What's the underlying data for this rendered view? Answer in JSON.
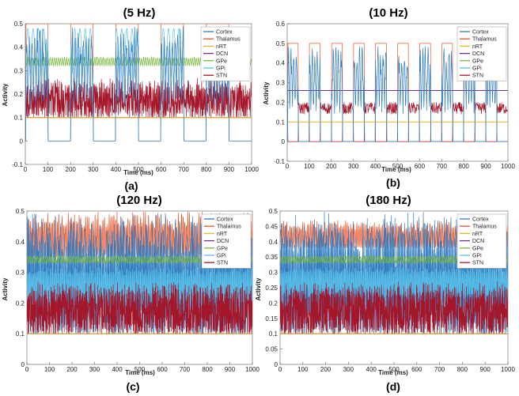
{
  "chart_data": [
    {
      "type": "line",
      "title": "(5 Hz)",
      "caption": "(a)",
      "xlabel": "Time (ms)",
      "ylabel": "Activity",
      "xlim": [
        0,
        1000
      ],
      "ylim": [
        -0.1,
        0.5
      ],
      "xticks": [
        "0",
        "100",
        "200",
        "300",
        "400",
        "500",
        "600",
        "700",
        "800",
        "900",
        "1000"
      ],
      "yticks": [
        "-0.1",
        "0",
        "0.1",
        "0.2",
        "0.3",
        "0.4",
        "0.5"
      ],
      "stim_frequency_hz": 5,
      "legend": [
        "Cortex",
        "Thalamus",
        "nRT",
        "DCN",
        "GPe",
        "GPi",
        "STN"
      ],
      "series": [
        {
          "name": "Cortex",
          "color": "#2f7bbf",
          "pattern": "bursts within thalamus pulses",
          "range": [
            0.0,
            0.49
          ]
        },
        {
          "name": "Thalamus",
          "color": "#e8552b",
          "pattern": "square pulses",
          "levels": [
            0,
            0.5
          ]
        },
        {
          "name": "nRT",
          "color": "#e6b728",
          "pattern": "constant",
          "value": 0.1
        },
        {
          "name": "DCN",
          "color": "#7b2d8e",
          "pattern": "constant",
          "value": 0.1
        },
        {
          "name": "GPe",
          "color": "#79b83a",
          "pattern": "noisy oscillation",
          "range": [
            0.32,
            0.36
          ]
        },
        {
          "name": "GPi",
          "color": "#5ac1ea",
          "pattern": "square pulses with oscillation",
          "range": [
            0.0,
            0.48
          ]
        },
        {
          "name": "STN",
          "color": "#a4162a",
          "pattern": "dense oscillation",
          "range": [
            0.1,
            0.27
          ]
        }
      ]
    },
    {
      "type": "line",
      "title": "(10 Hz)",
      "caption": "(b)",
      "xlabel": "Time (ms)",
      "ylabel": "Activity",
      "xlim": [
        0,
        1000
      ],
      "ylim": [
        -0.1,
        0.6
      ],
      "xticks": [
        "0",
        "100",
        "200",
        "300",
        "400",
        "500",
        "600",
        "700",
        "800",
        "900",
        "1000"
      ],
      "yticks": [
        "-0.1",
        "0",
        "0.1",
        "0.2",
        "0.3",
        "0.4",
        "0.5",
        "0.6"
      ],
      "stim_frequency_hz": 10,
      "legend": [
        "Cortex",
        "Thalamus",
        "nRT",
        "DCN",
        "GPe",
        "GPi",
        "STN"
      ],
      "series": [
        {
          "name": "Cortex",
          "color": "#2f7bbf",
          "pattern": "bursts within thalamus pulses",
          "range": [
            0.0,
            0.49
          ]
        },
        {
          "name": "Thalamus",
          "color": "#e8552b",
          "pattern": "square pulses",
          "levels": [
            0,
            0.5
          ]
        },
        {
          "name": "nRT",
          "color": "#e6b728",
          "pattern": "constant",
          "value": 0.1
        },
        {
          "name": "DCN",
          "color": "#7b2d8e",
          "pattern": "constant",
          "value": 0.26
        },
        {
          "name": "GPe",
          "color": "#79b83a",
          "pattern": "constant",
          "value": 0.26
        },
        {
          "name": "GPi",
          "color": "#5ac1ea",
          "pattern": "square pulses",
          "range": [
            0.0,
            0.26
          ]
        },
        {
          "name": "STN",
          "color": "#a4162a",
          "pattern": "square pulses",
          "range": [
            0.0,
            0.2
          ]
        }
      ]
    },
    {
      "type": "line",
      "title": "(120 Hz)",
      "caption": "(c)",
      "xlabel": "Time (ms)",
      "ylabel": "Activity",
      "xlim": [
        0,
        1000
      ],
      "ylim": [
        0,
        0.5
      ],
      "xticks": [
        "0",
        "100",
        "200",
        "300",
        "400",
        "500",
        "600",
        "700",
        "800",
        "900",
        "1000"
      ],
      "yticks": [
        "0",
        "0.1",
        "0.2",
        "0.3",
        "0.4",
        "0.5"
      ],
      "stim_frequency_hz": 120,
      "legend": [
        "Cortex",
        "Thalamus",
        "nRT",
        "DCN",
        "GPe",
        "GPi",
        "STN"
      ],
      "series": [
        {
          "name": "Cortex",
          "color": "#2f7bbf",
          "pattern": "high-frequency oscillation",
          "range": [
            0.1,
            0.5
          ]
        },
        {
          "name": "Thalamus",
          "color": "#e8552b",
          "pattern": "high-frequency oscillation",
          "range": [
            0.35,
            0.5
          ]
        },
        {
          "name": "nRT",
          "color": "#e6b728",
          "pattern": "constant",
          "value": 0.1
        },
        {
          "name": "DCN",
          "color": "#7b2d8e",
          "pattern": "constant",
          "value": 0.1
        },
        {
          "name": "GPe",
          "color": "#79b83a",
          "pattern": "noisy oscillation",
          "range": [
            0.33,
            0.355
          ]
        },
        {
          "name": "GPi",
          "color": "#5ac1ea",
          "pattern": "high-frequency oscillation",
          "range": [
            0.2,
            0.32
          ]
        },
        {
          "name": "STN",
          "color": "#a4162a",
          "pattern": "dense oscillation",
          "range": [
            0.1,
            0.27
          ]
        }
      ]
    },
    {
      "type": "line",
      "title": "(180 Hz)",
      "caption": "(d)",
      "xlabel": "Time (ms)",
      "ylabel": "Activity",
      "xlim": [
        0,
        1000
      ],
      "ylim": [
        0,
        0.5
      ],
      "xticks": [
        "0",
        "100",
        "200",
        "300",
        "400",
        "500",
        "600",
        "700",
        "800",
        "900",
        "1000"
      ],
      "yticks": [
        "0",
        "0.05",
        "0.1",
        "0.15",
        "0.2",
        "0.25",
        "0.3",
        "0.35",
        "0.4",
        "0.45",
        "0.5"
      ],
      "stim_frequency_hz": 180,
      "legend": [
        "Cortex",
        "Thalamus",
        "nRT",
        "DCN",
        "GPe",
        "GPi",
        "STN"
      ],
      "series": [
        {
          "name": "Cortex",
          "color": "#2f7bbf",
          "pattern": "high-frequency oscillation",
          "range": [
            0.1,
            0.5
          ]
        },
        {
          "name": "Thalamus",
          "color": "#e8552b",
          "pattern": "high-frequency oscillation",
          "range": [
            0.38,
            0.47
          ]
        },
        {
          "name": "nRT",
          "color": "#e6b728",
          "pattern": "constant",
          "value": 0.1
        },
        {
          "name": "DCN",
          "color": "#7b2d8e",
          "pattern": "constant",
          "value": 0.1
        },
        {
          "name": "GPe",
          "color": "#79b83a",
          "pattern": "noisy oscillation",
          "range": [
            0.33,
            0.355
          ]
        },
        {
          "name": "GPi",
          "color": "#5ac1ea",
          "pattern": "high-frequency oscillation",
          "range": [
            0.22,
            0.32
          ]
        },
        {
          "name": "STN",
          "color": "#a4162a",
          "pattern": "dense oscillation",
          "range": [
            0.1,
            0.27
          ]
        }
      ]
    }
  ]
}
